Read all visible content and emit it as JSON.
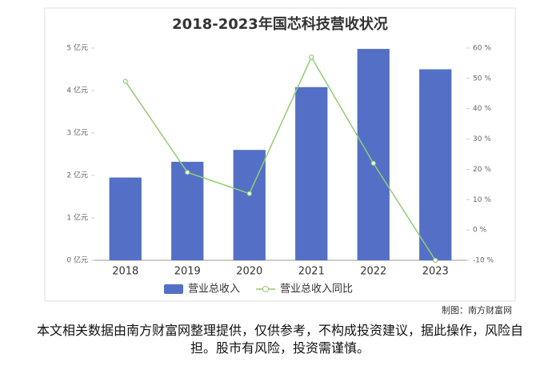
{
  "chart_data": {
    "type": "bar",
    "title": "2018-2023年国芯科技营收状况",
    "categories": [
      "2018",
      "2019",
      "2020",
      "2021",
      "2022",
      "2023"
    ],
    "series": [
      {
        "name": "营业总收入",
        "type": "bar",
        "color": "#5470c6",
        "values": [
          1.95,
          2.32,
          2.6,
          4.08,
          4.98,
          4.5
        ]
      },
      {
        "name": "营业总收入同比",
        "type": "line",
        "axis": "y2",
        "color": "#91cc75",
        "values": [
          49,
          19,
          12,
          57,
          22,
          -10
        ]
      }
    ],
    "ylim": [
      0,
      5
    ],
    "yticks": [
      {
        "value": 0,
        "label": "0 亿元"
      },
      {
        "value": 1,
        "label": "1 亿元"
      },
      {
        "value": 2,
        "label": "2 亿元"
      },
      {
        "value": 3,
        "label": "3 亿元"
      },
      {
        "value": 4,
        "label": "4 亿元"
      },
      {
        "value": 5,
        "label": "5 亿元"
      }
    ],
    "y2lim": [
      -10,
      60
    ],
    "y2ticks": [
      {
        "value": -10,
        "label": "-10 %"
      },
      {
        "value": 0,
        "label": "0 %"
      },
      {
        "value": 10,
        "label": "10 %"
      },
      {
        "value": 20,
        "label": "20 %"
      },
      {
        "value": 30,
        "label": "30 %"
      },
      {
        "value": 40,
        "label": "40 %"
      },
      {
        "value": 50,
        "label": "50 %"
      },
      {
        "value": 60,
        "label": "60 %"
      }
    ],
    "credit": "制图：南方财富网"
  },
  "footer": "本文相关数据由南方财富网整理提供，仅供参考，不构成投资建议，据此操作，风险自担。股市有风险，投资需谨慎。"
}
